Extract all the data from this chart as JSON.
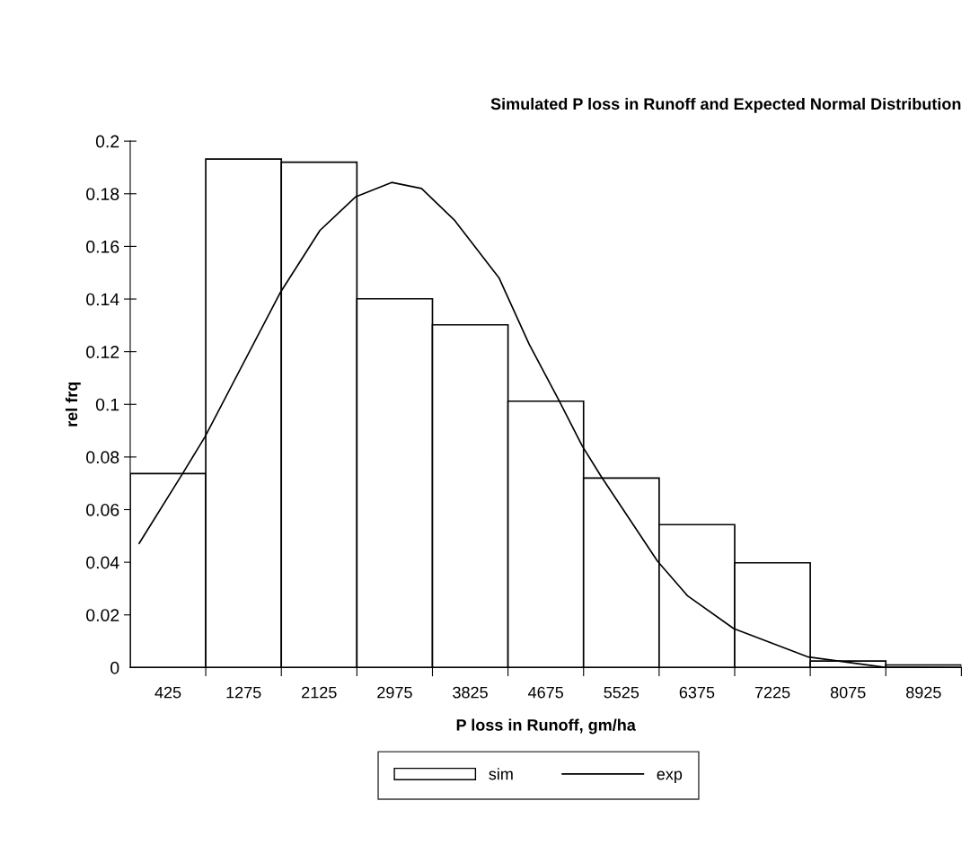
{
  "chart_data": {
    "type": "bar",
    "subtitle": "Simulated P loss in Runoff and Expected Normal Distribution",
    "xlabel": "P loss in Runoff, gm/ha",
    "ylabel": "rel frq",
    "x": [
      425,
      1275,
      2125,
      2975,
      3825,
      4675,
      5525,
      6375,
      7225,
      8075,
      8925
    ],
    "xlim": [
      0,
      9350
    ],
    "xticks": [
      425,
      {
        "value": 850,
        "label": null
      },
      1275,
      {
        "value": 1700,
        "label": null
      },
      2125,
      {
        "value": 2550,
        "label": null
      },
      2975,
      {
        "value": 3400,
        "label": null
      },
      3825,
      {
        "value": 4250,
        "label": null
      },
      4675,
      {
        "value": 5100,
        "label": null
      },
      5525,
      {
        "value": 5950,
        "label": null
      },
      6375,
      {
        "value": 6800,
        "label": null
      },
      7225,
      {
        "value": 7650,
        "label": null
      },
      8075,
      {
        "value": 8500,
        "label": null
      },
      8925,
      {
        "value": 9350,
        "label": null
      }
    ],
    "ylim": [
      0,
      0.2
    ],
    "yticks": [
      0,
      0.02,
      0.04,
      0.06,
      0.08,
      0.1,
      0.12,
      0.14,
      0.16,
      0.18,
      0.2
    ],
    "series": [
      {
        "name": "sim",
        "color": "#ffffff",
        "values": [
          0.0737,
          0.1932,
          0.192,
          0.1401,
          0.1302,
          0.1012,
          0.072,
          0.0543,
          0.0398,
          0.0025,
          0.001
        ]
      },
      {
        "name": "exp",
        "type": "line",
        "color": "#000000",
        "x": [
          101,
          588,
          840,
          1684,
          2135,
          2534,
          2941,
          3277,
          3647,
          4151,
          4487,
          4823,
          5085,
          5294,
          5932,
          6268,
          6789,
          7630,
          8470,
          9327
        ],
        "values": [
          0.0472,
          0.0736,
          0.0876,
          0.1422,
          0.1661,
          0.1788,
          0.1843,
          0.182,
          0.17,
          0.1479,
          0.1229,
          0.1015,
          0.0842,
          0.0728,
          0.0404,
          0.0273,
          0.0148,
          0.004,
          0.0002,
          0
        ]
      }
    ],
    "grid": false,
    "legend": "bottom"
  }
}
